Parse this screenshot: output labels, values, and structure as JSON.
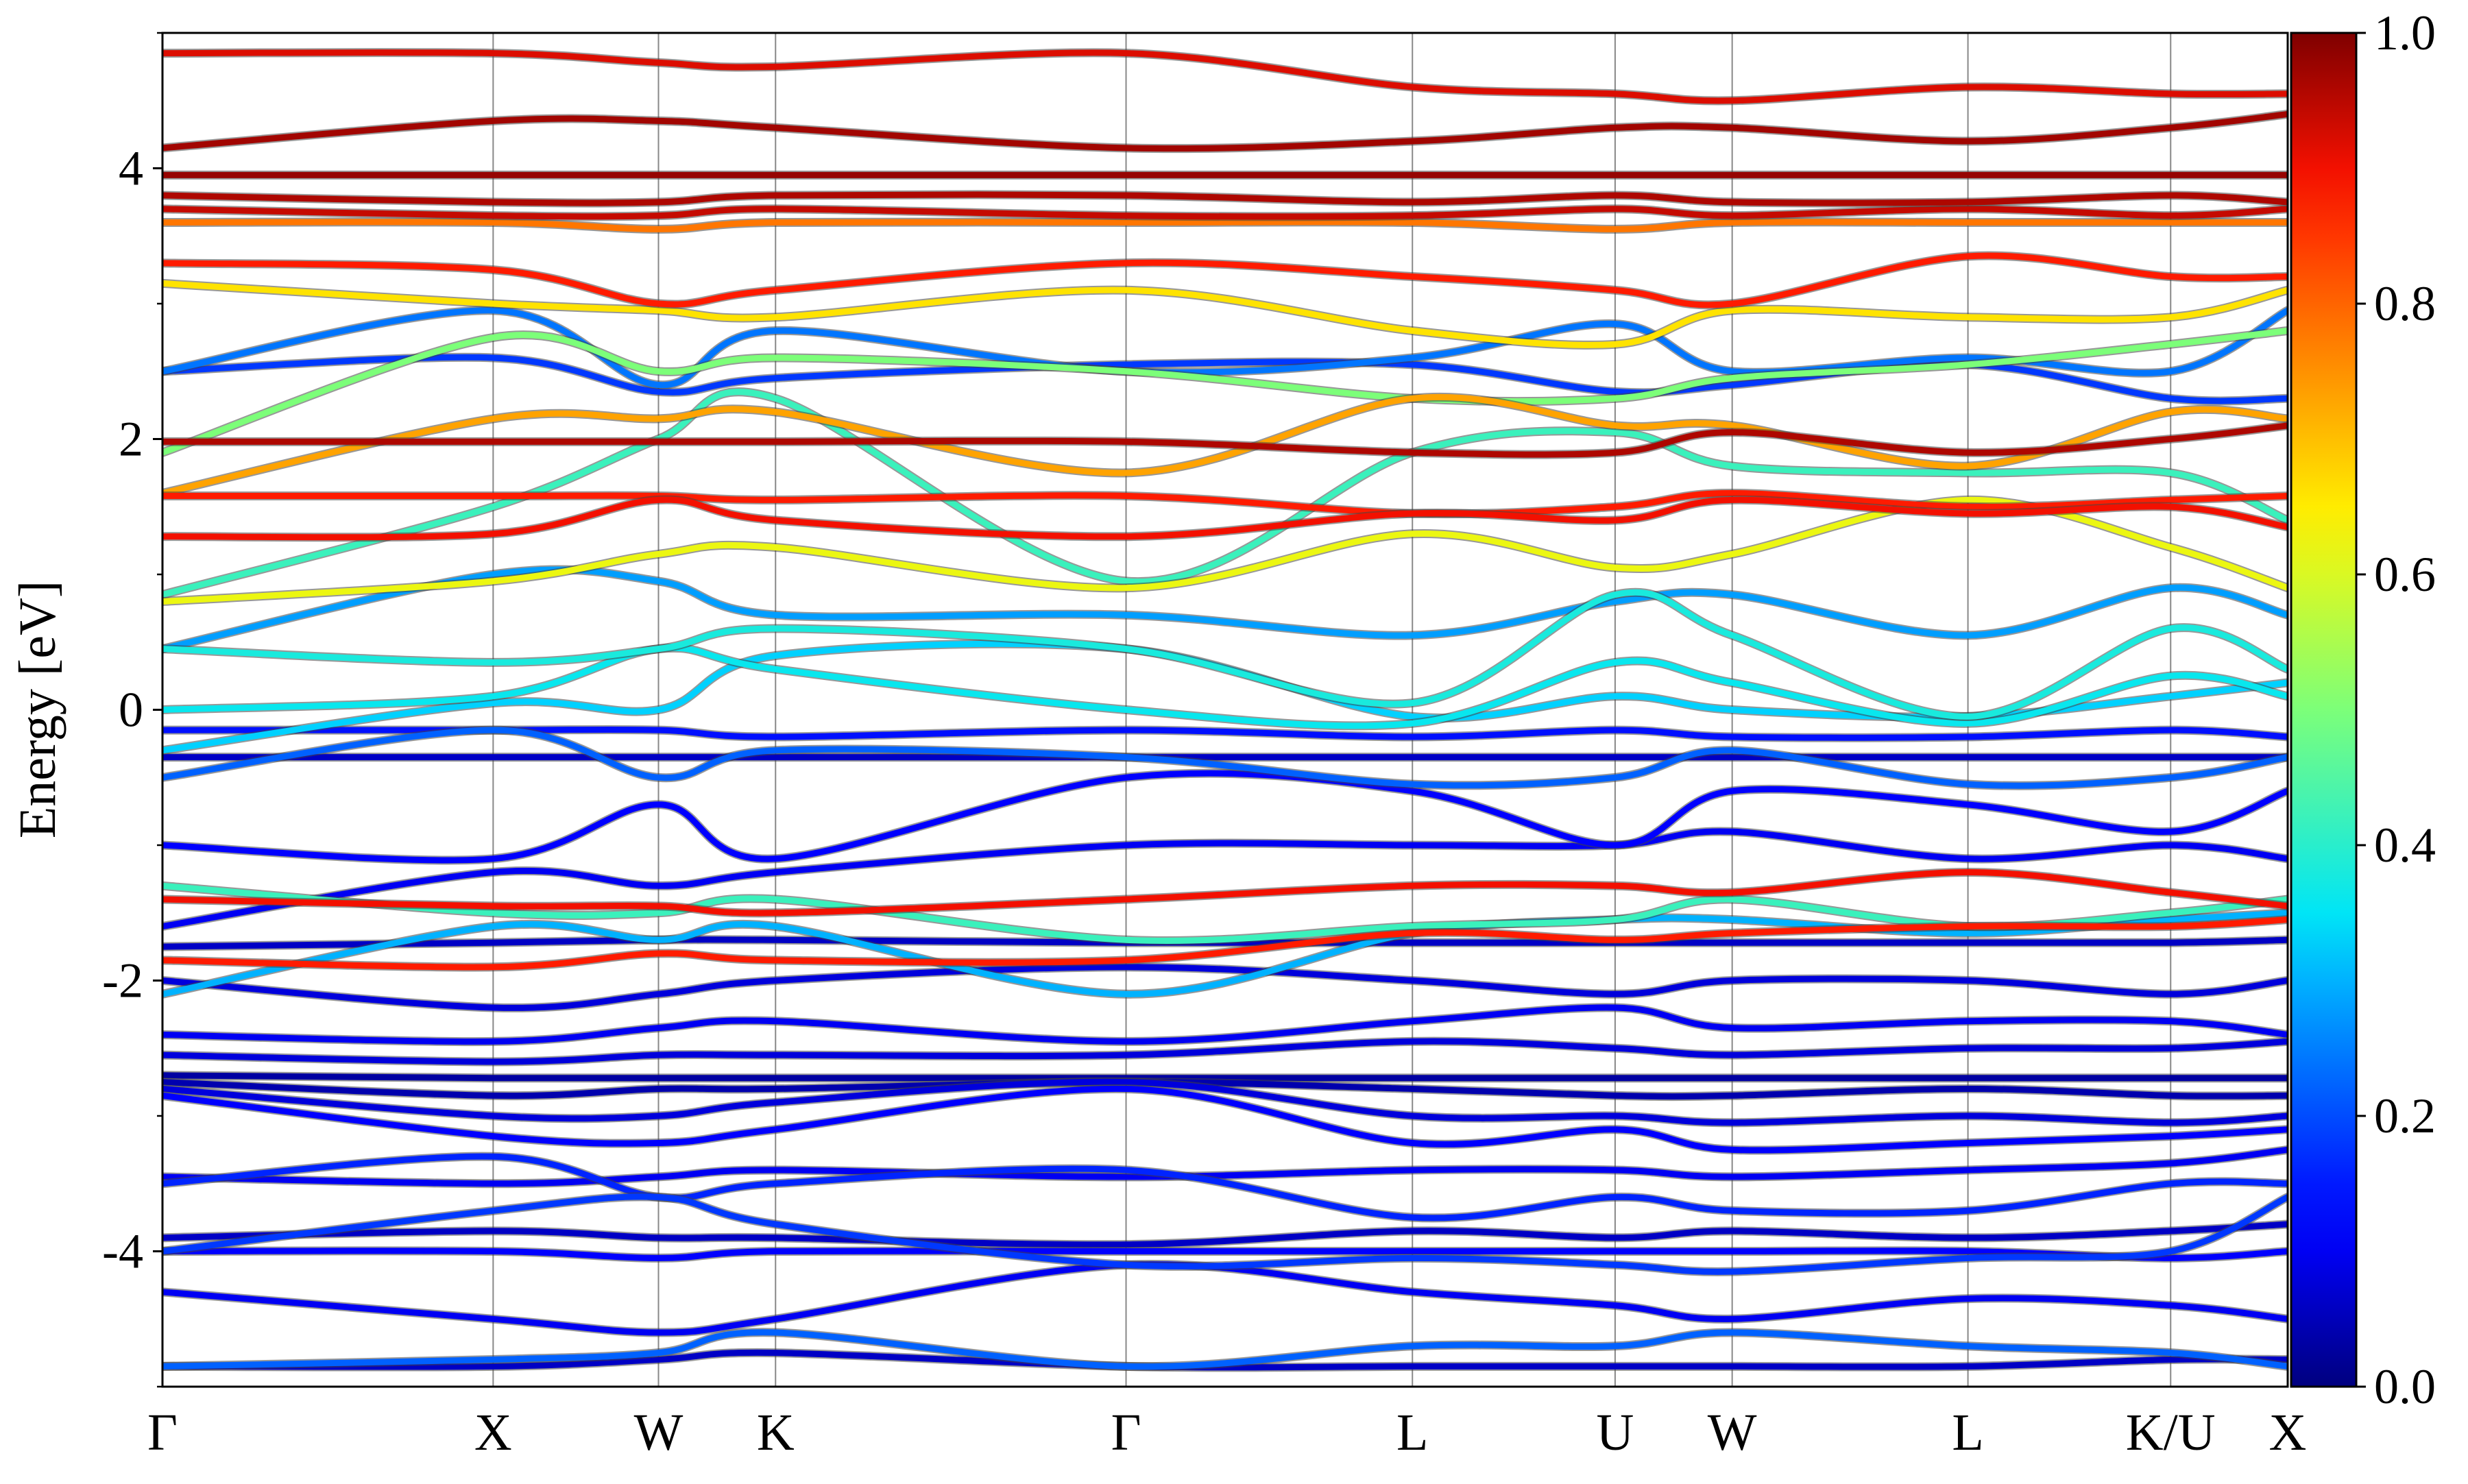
{
  "chart_data": {
    "type": "line",
    "title": "",
    "xlabel": "",
    "ylabel": "Energy [eV]",
    "ylim": [
      -5,
      5
    ],
    "y_ticks": [
      4,
      2,
      0,
      -2,
      -4
    ],
    "y_tick_labels": [
      "4",
      "2",
      "0",
      "-2",
      "-4"
    ],
    "y_minor_ticks": [
      5,
      3,
      1,
      -1,
      -3,
      -5
    ],
    "k_path": {
      "labels": [
        "Γ",
        "X",
        "W",
        "K",
        "Γ",
        "L",
        "U",
        "W",
        "L",
        "K/U",
        "X"
      ],
      "positions": [
        0.0,
        1.0,
        1.5,
        1.854,
        2.914,
        3.78,
        4.393,
        4.747,
        5.46,
        6.073,
        6.427
      ]
    },
    "colorbar": {
      "min": 0.0,
      "max": 1.0,
      "ticks": [
        0.0,
        0.2,
        0.4,
        0.6,
        0.8,
        1.0
      ],
      "tick_labels": [
        "0.0",
        "0.2",
        "0.4",
        "0.6",
        "0.8",
        "1.0"
      ],
      "colormap": "jet",
      "colors": [
        "#00007f",
        "#0000ff",
        "#007fff",
        "#00ffff",
        "#7fff7f",
        "#ffff00",
        "#ff7f00",
        "#ff0000",
        "#7f0000"
      ]
    },
    "grid": "vertical lines at high-symmetry points",
    "series": [
      {
        "weight": 0.92,
        "energies": [
          4.85,
          4.85,
          4.78,
          4.75,
          4.85,
          4.6,
          4.55,
          4.5,
          4.6,
          4.55,
          4.55
        ]
      },
      {
        "weight": 0.97,
        "energies": [
          4.15,
          4.35,
          4.35,
          4.3,
          4.15,
          4.2,
          4.3,
          4.3,
          4.2,
          4.3,
          4.4
        ]
      },
      {
        "weight": 0.98,
        "energies": [
          3.95,
          3.95,
          3.95,
          3.95,
          3.95,
          3.95,
          3.95,
          3.95,
          3.95,
          3.95,
          3.95
        ]
      },
      {
        "weight": 0.96,
        "energies": [
          3.8,
          3.75,
          3.75,
          3.8,
          3.8,
          3.75,
          3.8,
          3.75,
          3.75,
          3.8,
          3.75
        ]
      },
      {
        "weight": 0.94,
        "energies": [
          3.7,
          3.65,
          3.65,
          3.7,
          3.65,
          3.65,
          3.7,
          3.65,
          3.7,
          3.65,
          3.7
        ]
      },
      {
        "weight": 0.78,
        "energies": [
          3.6,
          3.6,
          3.55,
          3.6,
          3.6,
          3.6,
          3.55,
          3.6,
          3.6,
          3.6,
          3.6
        ]
      },
      {
        "weight": 0.88,
        "energies": [
          3.3,
          3.25,
          3.0,
          3.1,
          3.3,
          3.2,
          3.1,
          3.0,
          3.35,
          3.2,
          3.2
        ]
      },
      {
        "weight": 0.66,
        "energies": [
          3.15,
          3.0,
          2.95,
          2.9,
          3.1,
          2.8,
          2.7,
          2.95,
          2.9,
          2.9,
          3.1
        ]
      },
      {
        "weight": 0.24,
        "energies": [
          2.5,
          2.95,
          2.4,
          2.8,
          2.5,
          2.6,
          2.85,
          2.5,
          2.6,
          2.5,
          2.95
        ]
      },
      {
        "weight": 0.5,
        "energies": [
          1.9,
          2.75,
          2.5,
          2.6,
          2.5,
          2.3,
          2.3,
          2.45,
          2.55,
          2.7,
          2.8
        ]
      },
      {
        "weight": 0.18,
        "energies": [
          2.5,
          2.6,
          2.35,
          2.45,
          2.55,
          2.55,
          2.35,
          2.4,
          2.55,
          2.3,
          2.3
        ]
      },
      {
        "weight": 0.73,
        "energies": [
          1.6,
          2.15,
          2.15,
          2.2,
          1.75,
          2.3,
          2.1,
          2.1,
          1.8,
          2.2,
          2.15
        ]
      },
      {
        "weight": 0.96,
        "energies": [
          1.98,
          1.98,
          1.98,
          1.98,
          1.98,
          1.9,
          1.9,
          2.05,
          1.9,
          2.0,
          2.1
        ]
      },
      {
        "weight": 0.42,
        "energies": [
          0.85,
          1.5,
          2.0,
          2.3,
          0.95,
          1.9,
          2.05,
          1.8,
          1.75,
          1.75,
          1.4
        ]
      },
      {
        "weight": 0.88,
        "energies": [
          1.58,
          1.58,
          1.58,
          1.55,
          1.58,
          1.45,
          1.5,
          1.6,
          1.5,
          1.55,
          1.58
        ]
      },
      {
        "weight": 0.9,
        "energies": [
          1.28,
          1.3,
          1.55,
          1.4,
          1.28,
          1.45,
          1.4,
          1.55,
          1.45,
          1.5,
          1.35
        ]
      },
      {
        "weight": 0.62,
        "energies": [
          0.8,
          0.95,
          1.15,
          1.2,
          0.9,
          1.3,
          1.05,
          1.15,
          1.55,
          1.2,
          0.9
        ]
      },
      {
        "weight": 0.28,
        "energies": [
          0.45,
          1.0,
          0.95,
          0.7,
          0.7,
          0.55,
          0.8,
          0.85,
          0.55,
          0.9,
          0.7
        ]
      },
      {
        "weight": 0.38,
        "energies": [
          0.45,
          0.35,
          0.45,
          0.6,
          0.45,
          0.05,
          0.85,
          0.55,
          -0.05,
          0.6,
          0.3
        ]
      },
      {
        "weight": 0.36,
        "energies": [
          0.0,
          0.1,
          0.45,
          0.3,
          0.0,
          -0.1,
          0.35,
          0.2,
          -0.1,
          0.25,
          0.1
        ]
      },
      {
        "weight": 0.33,
        "energies": [
          -0.3,
          0.05,
          0.0,
          0.4,
          0.45,
          -0.05,
          0.1,
          0.0,
          -0.05,
          0.1,
          0.2
        ]
      },
      {
        "weight": 0.14,
        "energies": [
          -0.15,
          -0.15,
          -0.15,
          -0.2,
          -0.15,
          -0.2,
          -0.15,
          -0.2,
          -0.2,
          -0.15,
          -0.2
        ]
      },
      {
        "weight": 0.06,
        "energies": [
          -0.35,
          -0.35,
          -0.35,
          -0.35,
          -0.35,
          -0.35,
          -0.35,
          -0.35,
          -0.35,
          -0.35,
          -0.35
        ]
      },
      {
        "weight": 0.22,
        "energies": [
          -0.5,
          -0.15,
          -0.5,
          -0.3,
          -0.35,
          -0.55,
          -0.5,
          -0.3,
          -0.55,
          -0.5,
          -0.35
        ]
      },
      {
        "weight": 0.12,
        "energies": [
          -1.0,
          -1.1,
          -0.7,
          -1.1,
          -0.5,
          -0.6,
          -1.0,
          -0.6,
          -0.7,
          -0.9,
          -0.6
        ]
      },
      {
        "weight": 0.9,
        "energies": [
          -1.4,
          -1.45,
          -1.45,
          -1.5,
          -1.4,
          -1.3,
          -1.3,
          -1.35,
          -1.2,
          -1.35,
          -1.45
        ]
      },
      {
        "weight": 0.1,
        "energies": [
          -1.6,
          -1.2,
          -1.3,
          -1.2,
          -1.0,
          -1.0,
          -1.0,
          -0.9,
          -1.1,
          -1.0,
          -1.1
        ]
      },
      {
        "weight": 0.42,
        "energies": [
          -1.3,
          -1.5,
          -1.5,
          -1.4,
          -1.7,
          -1.6,
          -1.55,
          -1.4,
          -1.6,
          -1.5,
          -1.4
        ]
      },
      {
        "weight": 0.06,
        "energies": [
          -1.75,
          -1.72,
          -1.7,
          -1.7,
          -1.72,
          -1.72,
          -1.72,
          -1.72,
          -1.72,
          -1.72,
          -1.7
        ]
      },
      {
        "weight": 0.88,
        "energies": [
          -1.85,
          -1.9,
          -1.8,
          -1.85,
          -1.85,
          -1.65,
          -1.7,
          -1.65,
          -1.6,
          -1.6,
          -1.55
        ]
      },
      {
        "weight": 0.3,
        "energies": [
          -2.1,
          -1.6,
          -1.7,
          -1.6,
          -2.1,
          -1.65,
          -1.55,
          -1.55,
          -1.65,
          -1.55,
          -1.5
        ]
      },
      {
        "weight": 0.08,
        "energies": [
          -2.0,
          -2.2,
          -2.1,
          -2.0,
          -1.9,
          -2.0,
          -2.1,
          -2.0,
          -2.0,
          -2.1,
          -2.0
        ]
      },
      {
        "weight": 0.1,
        "energies": [
          -2.4,
          -2.45,
          -2.35,
          -2.3,
          -2.45,
          -2.3,
          -2.2,
          -2.35,
          -2.3,
          -2.3,
          -2.4
        ]
      },
      {
        "weight": 0.08,
        "energies": [
          -2.55,
          -2.6,
          -2.55,
          -2.55,
          -2.55,
          -2.45,
          -2.5,
          -2.55,
          -2.5,
          -2.5,
          -2.45
        ]
      },
      {
        "weight": 0.03,
        "energies": [
          -2.7,
          -2.72,
          -2.72,
          -2.72,
          -2.72,
          -2.72,
          -2.72,
          -2.72,
          -2.72,
          -2.72,
          -2.72
        ]
      },
      {
        "weight": 0.04,
        "energies": [
          -2.75,
          -2.85,
          -2.8,
          -2.8,
          -2.75,
          -2.8,
          -2.85,
          -2.85,
          -2.8,
          -2.85,
          -2.85
        ]
      },
      {
        "weight": 0.08,
        "energies": [
          -2.8,
          -3.0,
          -3.0,
          -2.9,
          -2.75,
          -3.0,
          -3.0,
          -3.05,
          -3.0,
          -3.05,
          -3.0
        ]
      },
      {
        "weight": 0.12,
        "energies": [
          -2.85,
          -3.15,
          -3.2,
          -3.1,
          -2.8,
          -3.2,
          -3.1,
          -3.25,
          -3.2,
          -3.15,
          -3.1
        ]
      },
      {
        "weight": 0.1,
        "energies": [
          -3.45,
          -3.5,
          -3.45,
          -3.4,
          -3.45,
          -3.4,
          -3.4,
          -3.45,
          -3.4,
          -3.35,
          -3.25
        ]
      },
      {
        "weight": 0.16,
        "energies": [
          -3.5,
          -3.3,
          -3.6,
          -3.5,
          -3.4,
          -3.75,
          -3.6,
          -3.7,
          -3.7,
          -3.5,
          -3.5
        ]
      },
      {
        "weight": 0.06,
        "energies": [
          -3.9,
          -3.85,
          -3.9,
          -3.9,
          -3.95,
          -3.85,
          -3.9,
          -3.85,
          -3.9,
          -3.85,
          -3.8
        ]
      },
      {
        "weight": 0.12,
        "energies": [
          -4.0,
          -4.0,
          -4.05,
          -4.0,
          -4.0,
          -4.0,
          -4.0,
          -4.0,
          -4.0,
          -4.05,
          -4.0
        ]
      },
      {
        "weight": 0.18,
        "energies": [
          -4.0,
          -3.7,
          -3.6,
          -3.8,
          -4.1,
          -4.05,
          -4.1,
          -4.15,
          -4.05,
          -4.0,
          -3.6
        ]
      },
      {
        "weight": 0.1,
        "energies": [
          -4.3,
          -4.5,
          -4.6,
          -4.5,
          -4.1,
          -4.3,
          -4.4,
          -4.5,
          -4.35,
          -4.4,
          -4.5
        ]
      },
      {
        "weight": 0.22,
        "energies": [
          -4.85,
          -4.8,
          -4.75,
          -4.6,
          -4.85,
          -4.7,
          -4.7,
          -4.6,
          -4.7,
          -4.75,
          -4.85
        ]
      },
      {
        "weight": 0.06,
        "energies": [
          -4.85,
          -4.85,
          -4.8,
          -4.75,
          -4.85,
          -4.85,
          -4.85,
          -4.85,
          -4.85,
          -4.8,
          -4.8
        ]
      }
    ]
  }
}
